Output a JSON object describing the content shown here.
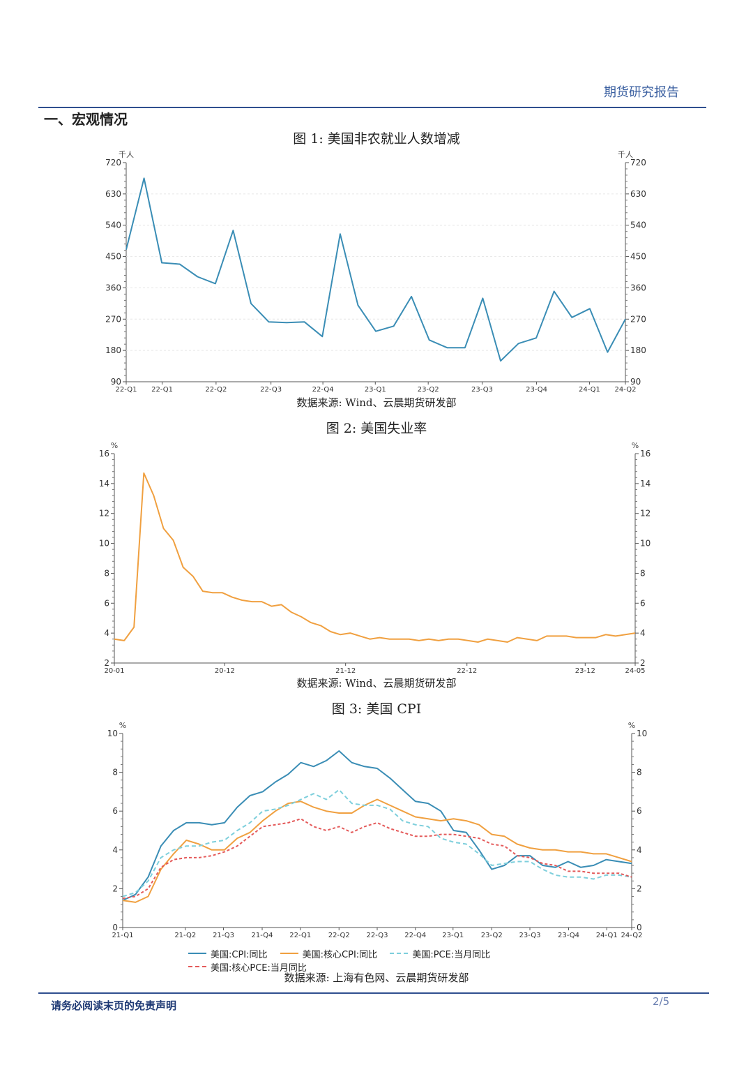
{
  "header": {
    "title": "期货研究报告"
  },
  "section": {
    "title": "一、宏观情况"
  },
  "figures": [
    {
      "title": "图 1:  美国非农就业人数增减",
      "source": "数据来源:  Wind、云晨期货研发部"
    },
    {
      "title": "图 2:  美国失业率",
      "source": "数据来源:  Wind、云晨期货研发部"
    },
    {
      "title": "图 3:  美国 CPI",
      "source": "数据来源:  上海有色网、云晨期货研发部"
    }
  ],
  "footer": {
    "disclaimer": "请务必阅读末页的免责声明",
    "page": "2/5"
  },
  "chart_data": [
    {
      "type": "line",
      "unit_left": "千人",
      "unit_right": "千人",
      "ylim": [
        90,
        720
      ],
      "yticks": [
        "90",
        "180",
        "270",
        "360",
        "450",
        "540",
        "630",
        "720"
      ],
      "xticks": [
        "22-Q1",
        "22-Q1",
        "22-Q2",
        "22-Q3",
        "22-Q4",
        "23-Q1",
        "23-Q2",
        "23-Q3",
        "23-Q4",
        "24-Q1",
        "24-Q2"
      ],
      "series": [
        {
          "color": "#3a8db5",
          "values": [
            470,
            675,
            432,
            428,
            392,
            372,
            525,
            315,
            262,
            260,
            262,
            220,
            515,
            310,
            235,
            250,
            335,
            210,
            188,
            188,
            330,
            150,
            200,
            216,
            350,
            275,
            300,
            175,
            270
          ]
        }
      ]
    },
    {
      "type": "line",
      "unit_left": "%",
      "unit_right": "%",
      "ylim": [
        2,
        16
      ],
      "yticks": [
        "2",
        "4",
        "6",
        "8",
        "10",
        "12",
        "14",
        "16"
      ],
      "xticks": [
        "20-01",
        "20-12",
        "21-12",
        "22-12",
        "23-12",
        "24-05"
      ],
      "series": [
        {
          "color": "#f0a040",
          "values": [
            3.6,
            3.5,
            4.4,
            14.7,
            13.2,
            11.0,
            10.2,
            8.4,
            7.8,
            6.8,
            6.7,
            6.7,
            6.4,
            6.2,
            6.1,
            6.1,
            5.8,
            5.9,
            5.4,
            5.1,
            4.7,
            4.5,
            4.1,
            3.9,
            4.0,
            3.8,
            3.6,
            3.7,
            3.6,
            3.6,
            3.6,
            3.5,
            3.6,
            3.5,
            3.6,
            3.6,
            3.5,
            3.4,
            3.6,
            3.5,
            3.4,
            3.7,
            3.6,
            3.5,
            3.8,
            3.8,
            3.8,
            3.7,
            3.7,
            3.7,
            3.9,
            3.8,
            3.9,
            4.0
          ]
        }
      ]
    },
    {
      "type": "line",
      "unit_left": "%",
      "unit_right": "%",
      "ylim": [
        0,
        10
      ],
      "yticks": [
        "0",
        "2",
        "4",
        "6",
        "8",
        "10"
      ],
      "xticks": [
        "21-Q1",
        "21-Q2",
        "21-Q3",
        "21-Q4",
        "22-Q1",
        "22-Q2",
        "22-Q3",
        "22-Q4",
        "23-Q1",
        "23-Q2",
        "23-Q3",
        "23-Q4",
        "24-Q1",
        "24-Q2"
      ],
      "series": [
        {
          "name": "美国:CPI:同比",
          "color": "#3a8db5",
          "dash": "",
          "values": [
            1.4,
            1.7,
            2.6,
            4.2,
            5.0,
            5.4,
            5.4,
            5.3,
            5.4,
            6.2,
            6.8,
            7.0,
            7.5,
            7.9,
            8.5,
            8.3,
            8.6,
            9.1,
            8.5,
            8.3,
            8.2,
            7.7,
            7.1,
            6.5,
            6.4,
            6.0,
            5.0,
            4.9,
            4.0,
            3.0,
            3.2,
            3.7,
            3.7,
            3.2,
            3.1,
            3.4,
            3.1,
            3.2,
            3.5,
            3.4,
            3.3
          ]
        },
        {
          "name": "美国:核心CPI:同比",
          "color": "#f0a040",
          "dash": "",
          "values": [
            1.4,
            1.3,
            1.6,
            3.0,
            3.8,
            4.5,
            4.3,
            4.0,
            4.0,
            4.6,
            4.9,
            5.5,
            6.0,
            6.4,
            6.5,
            6.2,
            6.0,
            5.9,
            5.9,
            6.3,
            6.6,
            6.3,
            6.0,
            5.7,
            5.6,
            5.5,
            5.6,
            5.5,
            5.3,
            4.8,
            4.7,
            4.3,
            4.1,
            4.0,
            4.0,
            3.9,
            3.9,
            3.8,
            3.8,
            3.6,
            3.4
          ]
        },
        {
          "name": "美国:PCE:当月同比",
          "color": "#7ecfdc",
          "dash": "6,4",
          "values": [
            1.6,
            1.8,
            2.4,
            3.6,
            4.0,
            4.2,
            4.2,
            4.4,
            4.5,
            5.0,
            5.4,
            6.0,
            6.1,
            6.3,
            6.6,
            6.9,
            6.6,
            7.1,
            6.4,
            6.3,
            6.3,
            6.1,
            5.5,
            5.3,
            5.2,
            4.6,
            4.4,
            4.3,
            3.8,
            3.2,
            3.3,
            3.4,
            3.4,
            3.0,
            2.7,
            2.6,
            2.6,
            2.5,
            2.7,
            2.7,
            2.6
          ]
        },
        {
          "name": "美国:核心PCE:当月同比",
          "color": "#e45a5a",
          "dash": "4,3",
          "values": [
            1.5,
            1.6,
            2.0,
            3.1,
            3.5,
            3.6,
            3.6,
            3.7,
            3.9,
            4.2,
            4.7,
            5.2,
            5.3,
            5.4,
            5.6,
            5.2,
            5.0,
            5.2,
            4.9,
            5.2,
            5.4,
            5.1,
            4.9,
            4.7,
            4.7,
            4.8,
            4.8,
            4.7,
            4.6,
            4.3,
            4.2,
            3.7,
            3.6,
            3.3,
            3.2,
            2.9,
            2.9,
            2.8,
            2.8,
            2.8,
            2.6
          ]
        }
      ]
    }
  ]
}
